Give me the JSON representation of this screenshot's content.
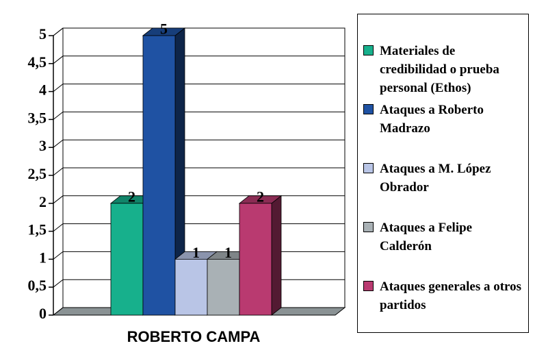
{
  "chart_data": {
    "type": "bar3d",
    "categories": [
      "ROBERTO CAMPA"
    ],
    "series": [
      {
        "name": "Materiales de credibilidad o prueba personal (Ethos)",
        "color": "#17b08c",
        "values": [
          2
        ]
      },
      {
        "name": "Ataques a Roberto Madrazo",
        "color": "#1f52a3",
        "values": [
          5
        ]
      },
      {
        "name": "Ataques a M. López Obrador",
        "color": "#b9c5e6",
        "values": [
          1
        ]
      },
      {
        "name": "Ataques a Felipe Calderón",
        "color": "#a9b1b5",
        "values": [
          1
        ]
      },
      {
        "name": "Ataques generales a otros partidos",
        "color": "#b93a70",
        "values": [
          2
        ]
      }
    ],
    "ylim": [
      0,
      5
    ],
    "yticks": [
      0,
      {
        "value": 0.5,
        "label": "0,5"
      },
      1,
      {
        "value": 1.5,
        "label": "1,5"
      },
      2,
      {
        "value": 2.5,
        "label": "2,5"
      },
      3,
      {
        "value": 3.5,
        "label": "3,5"
      },
      4,
      {
        "value": 4.5,
        "label": "4,5"
      },
      5
    ],
    "grid": true,
    "legend": "right"
  }
}
